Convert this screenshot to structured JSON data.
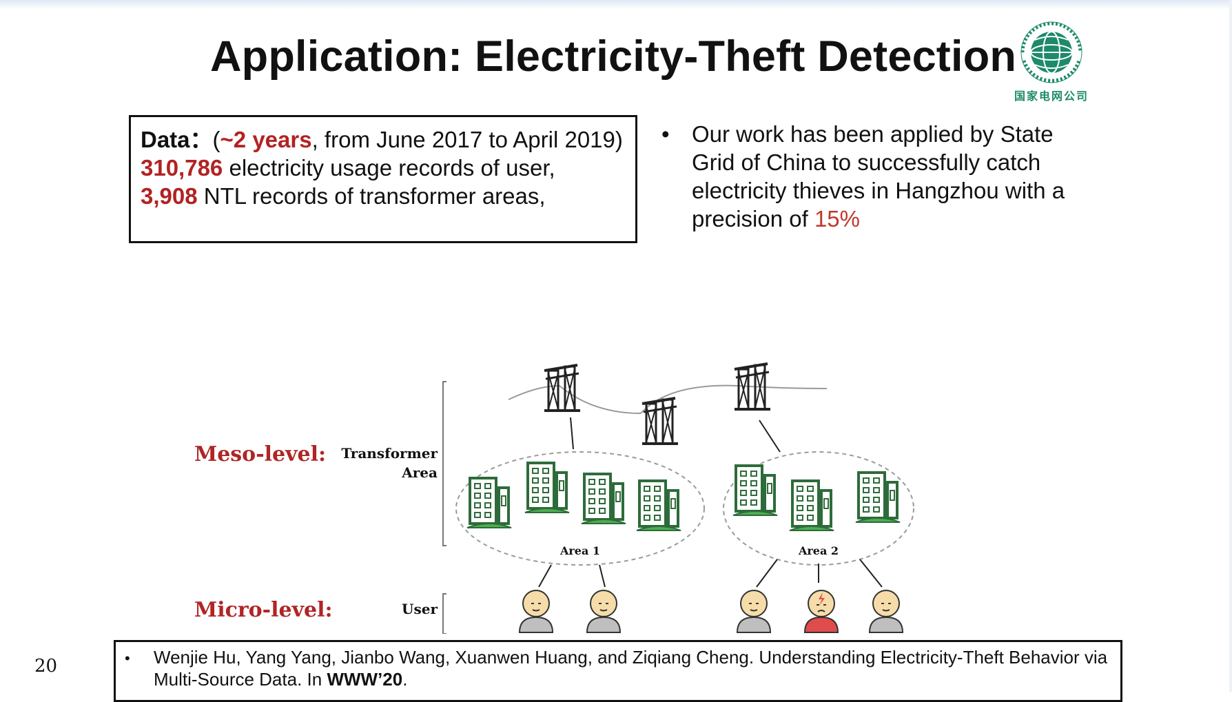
{
  "slide": {
    "title": "Application: Electricity-Theft Detection",
    "page_number": "20"
  },
  "logo": {
    "ring_text": "国家电网公司 STATE GRID CORPORATION OF CHINA",
    "cn_label": "国家电网公司",
    "color": "#1d8a6a"
  },
  "data_box": {
    "label": "Data",
    "label_sep": "：",
    "open_paren": "(",
    "span_highlight": "~2 years",
    "span_rest": ", from June 2017 to April 2019)",
    "user_count": "310,786",
    "user_text": " electricity usage records of user,",
    "ntl_count": "3,908",
    "ntl_text": " NTL records of transformer areas,"
  },
  "bullet": {
    "marker": "•",
    "text": "Our work has been applied by State Grid of China to successfully catch electricity thieves in Hangzhou with a precision of ",
    "highlight": "15%"
  },
  "figure": {
    "meso_label": "Meso-level:",
    "micro_label": "Micro-level:",
    "transformer_line1": "Transformer",
    "transformer_line2": "Area",
    "user_label": "User",
    "area1_label": "Area 1",
    "area2_label": "Area 2"
  },
  "reference": {
    "marker": "•",
    "text": "Wenjie Hu, Yang Yang, Jianbo Wang, Xuanwen Huang, and Ziqiang Cheng. Understanding Electricity-Theft Behavior via Multi-Source Data. In ",
    "venue": "WWW’20",
    "end": "."
  },
  "colors": {
    "accent_red": "#b22222",
    "building_green": "#2e6b3a",
    "grass_green": "#4caf50",
    "thief_red": "#e04b4b"
  }
}
